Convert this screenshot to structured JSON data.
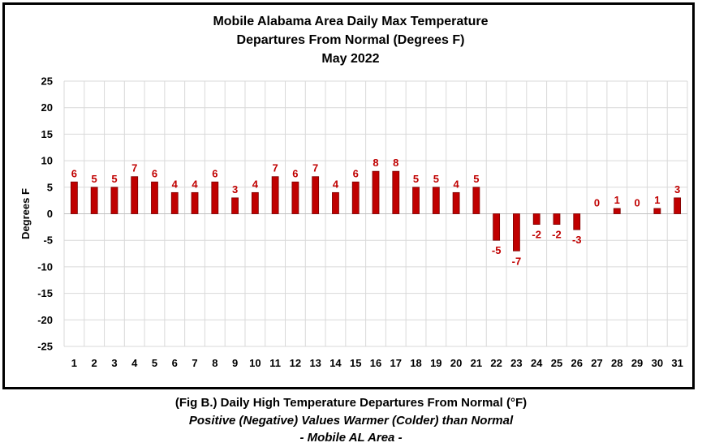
{
  "chart_data": {
    "type": "bar",
    "title": [
      "Mobile Alabama Area Daily Max Temperature",
      "Departures From Normal (Degrees F)",
      "May 2022"
    ],
    "xlabel": "",
    "ylabel": "Degrees F",
    "ylim": [
      -25,
      25
    ],
    "yticks": [
      25,
      20,
      15,
      10,
      5,
      0,
      -5,
      -10,
      -15,
      -20,
      -25
    ],
    "grid": true,
    "categories": [
      "1",
      "2",
      "3",
      "4",
      "5",
      "6",
      "7",
      "8",
      "9",
      "10",
      "11",
      "12",
      "13",
      "14",
      "15",
      "16",
      "17",
      "18",
      "19",
      "20",
      "21",
      "22",
      "23",
      "24",
      "25",
      "26",
      "27",
      "28",
      "29",
      "30",
      "31"
    ],
    "values": [
      6,
      5,
      5,
      7,
      6,
      4,
      4,
      6,
      3,
      4,
      7,
      6,
      7,
      4,
      6,
      8,
      8,
      5,
      5,
      4,
      5,
      -5,
      -7,
      -2,
      -2,
      -3,
      0,
      1,
      0,
      1,
      3
    ],
    "bar_color": "#c00000",
    "label_color": "#c00000"
  },
  "captions": {
    "line1": "(Fig B.) Daily High Temperature Departures From Normal (°F)",
    "line2": "Positive (Negative) Values Warmer (Colder) than Normal",
    "line3": "- Mobile AL Area -"
  }
}
